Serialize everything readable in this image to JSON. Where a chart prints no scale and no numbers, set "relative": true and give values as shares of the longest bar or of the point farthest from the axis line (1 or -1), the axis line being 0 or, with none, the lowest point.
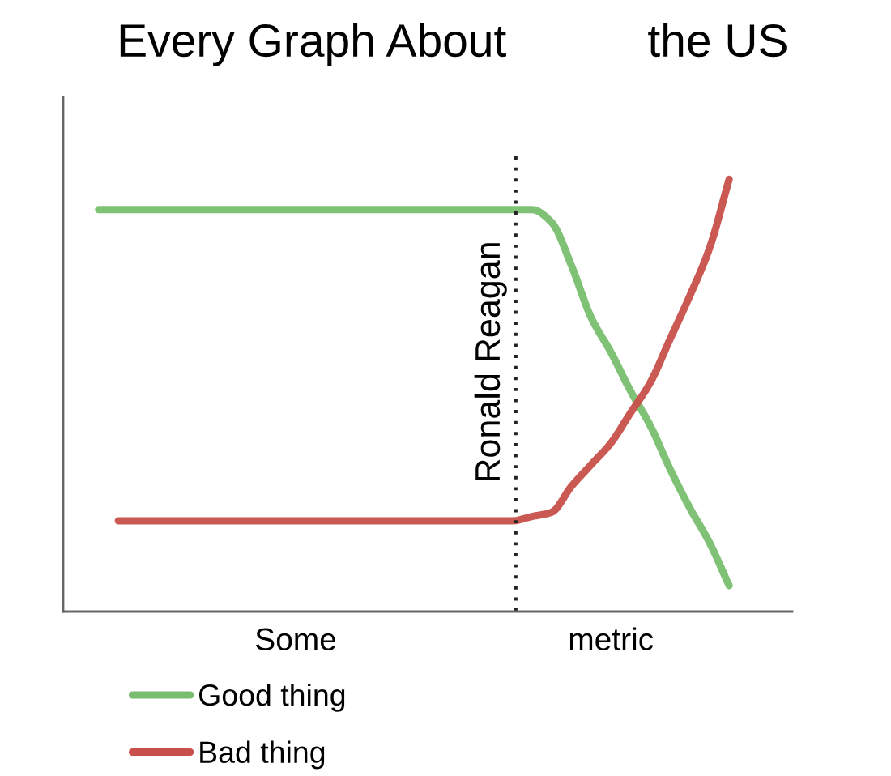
{
  "chart_data": {
    "type": "line",
    "title": "Every Graph About           the US",
    "relative": true,
    "tick_labels": "x",
    "legend": "bottom left",
    "categories": [
      null,
      null,
      null,
      null,
      null,
      null,
      null,
      null,
      null,
      null,
      "Some",
      null,
      null,
      null,
      null,
      null,
      null,
      null,
      null,
      null,
      null,
      null,
      null,
      null,
      null,
      null,
      "metric",
      null,
      null,
      null,
      null,
      null,
      null
    ],
    "series": [
      {
        "name": "Good thing",
        "color": "#78be6e",
        "values": [
          0.93,
          0.93,
          0.93,
          0.93,
          0.93,
          0.93,
          0.93,
          0.93,
          0.93,
          0.93,
          0.93,
          0.93,
          0.93,
          0.93,
          0.93,
          0.93,
          0.93,
          0.93,
          0.93,
          0.93,
          0.93,
          0.93,
          0.93,
          0.9,
          0.8,
          0.68,
          0.6,
          0.51,
          0.43,
          0.33,
          0.24,
          0.16,
          0.06
        ]
      },
      {
        "name": "Bad thing",
        "color": "#c8504a",
        "values": [
          null,
          0.21,
          0.21,
          0.21,
          0.21,
          0.21,
          0.21,
          0.21,
          0.21,
          0.21,
          0.21,
          0.21,
          0.21,
          0.21,
          0.21,
          0.21,
          0.21,
          0.21,
          0.21,
          0.21,
          0.21,
          0.21,
          0.22,
          0.23,
          0.29,
          0.34,
          0.39,
          0.46,
          0.53,
          0.63,
          0.73,
          0.84,
          1
        ]
      }
    ],
    "annotations": [
      "Ronald Reagan"
    ]
  }
}
